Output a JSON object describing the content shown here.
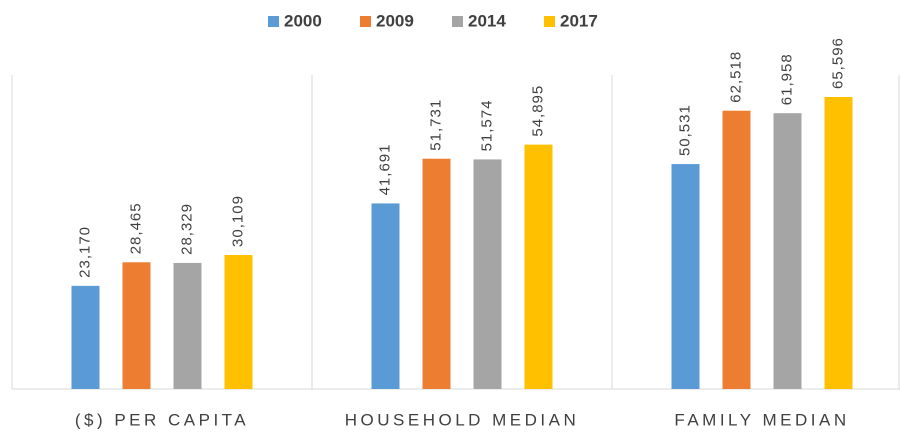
{
  "chart_data": {
    "type": "bar",
    "categories": [
      "($) PER CAPITA",
      "HOUSEHOLD MEDIAN",
      "FAMILY MEDIAN"
    ],
    "series": [
      {
        "name": "2000",
        "color": "#5b9bd5",
        "values": [
          23170,
          41691,
          50531
        ],
        "value_labels": [
          "23,170",
          "41,691",
          "50,531"
        ]
      },
      {
        "name": "2009",
        "color": "#ed7d31",
        "values": [
          28465,
          51731,
          62518
        ],
        "value_labels": [
          "28,465",
          "51,731",
          "62,518"
        ]
      },
      {
        "name": "2014",
        "color": "#a5a5a5",
        "values": [
          28329,
          51574,
          61958
        ],
        "value_labels": [
          "28,329",
          "51,574",
          "61,958"
        ]
      },
      {
        "name": "2017",
        "color": "#ffc000",
        "values": [
          30109,
          54895,
          65596
        ],
        "value_labels": [
          "30,109",
          "54,895",
          "65,596"
        ]
      }
    ],
    "legend": "top"
  }
}
